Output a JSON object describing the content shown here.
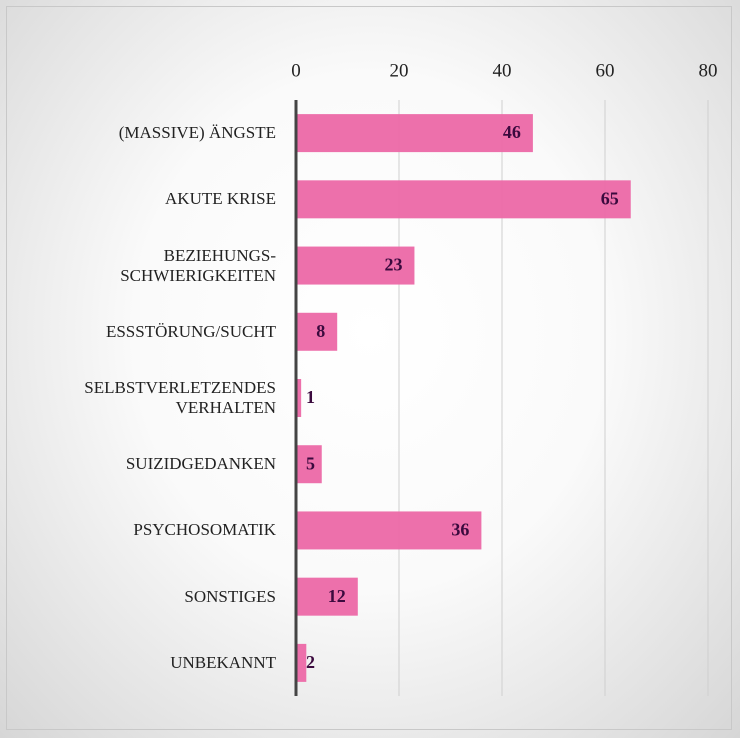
{
  "chart_data": {
    "type": "bar",
    "orientation": "horizontal",
    "categories": [
      "(MASSIVE) ÄNGSTE",
      "AKUTE KRISE",
      "BEZIEHUNGS-\nSCHWIERIGKEITEN",
      "ESSSTÖRUNG/SUCHT",
      "SELBSTVERLETZENDES\nVERHALTEN",
      "SUIZIDGEDANKEN",
      "PSYCHOSOMATIK",
      "SONSTIGES",
      "UNBEKANNT"
    ],
    "values": [
      46,
      65,
      23,
      8,
      1,
      5,
      36,
      12,
      2
    ],
    "color": "#ec68a7",
    "xlim": [
      0,
      80
    ],
    "xticks": [
      0,
      20,
      40,
      60,
      80
    ],
    "grid": true
  }
}
